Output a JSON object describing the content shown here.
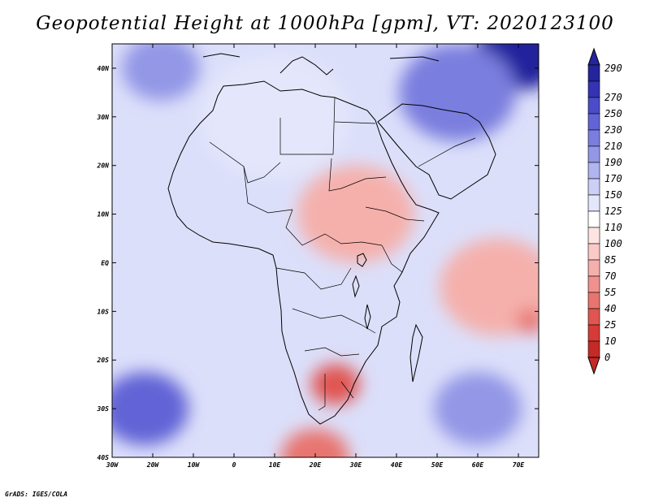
{
  "title": "Geopotential Height at 1000hPa [gpm], VT: 2020123100",
  "credit": "GrADS: IGES/COLA",
  "map": {
    "lon_range": [
      -30,
      75
    ],
    "lat_range": [
      -40,
      45
    ],
    "lon_ticks": [
      {
        "value": -30,
        "label": "30W"
      },
      {
        "value": -20,
        "label": "20W"
      },
      {
        "value": -10,
        "label": "10W"
      },
      {
        "value": 0,
        "label": "0"
      },
      {
        "value": 10,
        "label": "10E"
      },
      {
        "value": 20,
        "label": "20E"
      },
      {
        "value": 30,
        "label": "30E"
      },
      {
        "value": 40,
        "label": "40E"
      },
      {
        "value": 50,
        "label": "50E"
      },
      {
        "value": 60,
        "label": "60E"
      },
      {
        "value": 70,
        "label": "70E"
      }
    ],
    "lat_ticks": [
      {
        "value": 40,
        "label": "40N"
      },
      {
        "value": 30,
        "label": "30N"
      },
      {
        "value": 20,
        "label": "20N"
      },
      {
        "value": 10,
        "label": "10N"
      },
      {
        "value": 0,
        "label": "EQ"
      },
      {
        "value": -10,
        "label": "10S"
      },
      {
        "value": -20,
        "label": "20S"
      },
      {
        "value": -30,
        "label": "30S"
      },
      {
        "value": -40,
        "label": "40S"
      }
    ],
    "field_centers": [
      {
        "lon": 20,
        "lat": -40,
        "value": 50,
        "spread": 7
      },
      {
        "lon": 25,
        "lat": -25,
        "value": 25,
        "spread": 5
      },
      {
        "lon": 30,
        "lat": 10,
        "value": 75,
        "spread": 12
      },
      {
        "lon": 65,
        "lat": -5,
        "value": 70,
        "spread": 12
      },
      {
        "lon": 73,
        "lat": -12,
        "value": 40,
        "spread": 3
      },
      {
        "lon": -22,
        "lat": -30,
        "value": 230,
        "spread": 9
      },
      {
        "lon": 60,
        "lat": -30,
        "value": 200,
        "spread": 9
      },
      {
        "lon": -18,
        "lat": 40,
        "value": 200,
        "spread": 8
      },
      {
        "lon": 70,
        "lat": 43,
        "value": 290,
        "spread": 9
      },
      {
        "lon": 55,
        "lat": 35,
        "value": 220,
        "spread": 12
      },
      {
        "lon": 10,
        "lat": 30,
        "value": 135,
        "spread": 15
      }
    ]
  },
  "colorbar": {
    "levels": [
      "0",
      "10",
      "25",
      "40",
      "55",
      "70",
      "85",
      "100",
      "110",
      "125",
      "150",
      "170",
      "190",
      "210",
      "230",
      "250",
      "270",
      "290"
    ],
    "colors": [
      "#c42a26",
      "#d63b38",
      "#e05551",
      "#e87470",
      "#ef928e",
      "#f5b0ac",
      "#f9cac7",
      "#fde4e2",
      "#ffffff",
      "#e4e7fb",
      "#cccff6",
      "#b1b5ef",
      "#9397e6",
      "#7a7ede",
      "#6264d6",
      "#4b4cc7",
      "#3333b4",
      "#24249c"
    ]
  }
}
